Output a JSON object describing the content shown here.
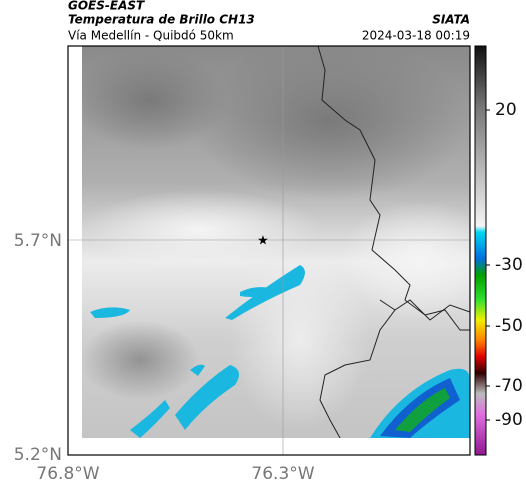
{
  "header": {
    "satellite": "GOES-EAST",
    "product": "Temperatura de Brillo CH13",
    "agency": "SIATA",
    "route": "Vía Medellín - Quibdó 50km",
    "timestamp": "2024-03-18 00:19"
  },
  "axes": {
    "latitude_labels": [
      "5.7°N",
      "5.2°N"
    ],
    "longitude_labels": [
      "76.8°W",
      "76.3°W"
    ]
  },
  "colorbar": {
    "tick_labels": [
      "20",
      "-30",
      "-50",
      "-70",
      "-90"
    ]
  }
}
